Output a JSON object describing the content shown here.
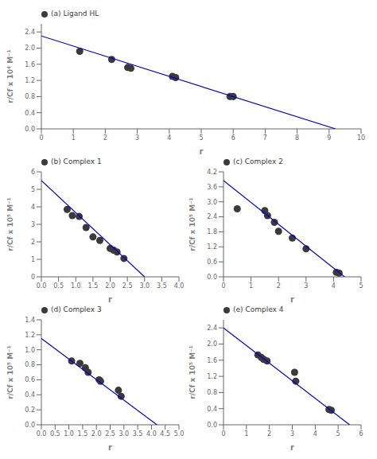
{
  "chart_data": [
    {
      "type": "scatter",
      "xlabel": "r",
      "ylabel": "r/Cf x 10⁴ M⁻¹",
      "legend": "upper left",
      "xlim": [
        0,
        10
      ],
      "ylim": [
        0.0,
        2.6
      ],
      "xticks": [
        0,
        1,
        2,
        3,
        4,
        5,
        6,
        7,
        8,
        9,
        10
      ],
      "yticks": [
        {
          "value": 0,
          "label": "0.0"
        },
        0.4,
        0.8,
        1.2,
        1.6,
        {
          "value": 2,
          "label": "2.0"
        },
        2.4
      ],
      "series": [
        {
          "name": "(a) Ligand HL",
          "type": "scatter",
          "color": "#3a3a3a",
          "x": [
            1.2,
            2.2,
            2.7,
            2.8,
            4.1,
            4.2,
            5.9,
            6.0
          ],
          "values": [
            1.92,
            1.72,
            1.52,
            1.5,
            1.3,
            1.27,
            0.8,
            0.8
          ]
        },
        {
          "type": "line",
          "color": "#0000cc",
          "x": [
            0,
            9.2
          ],
          "values": [
            2.3,
            0.0
          ]
        }
      ]
    },
    {
      "type": "scatter",
      "xlabel": "r",
      "ylabel": "r/Cf x 10⁵ M⁻¹",
      "legend": "upper left",
      "xlim": [
        0.0,
        4.0
      ],
      "ylim": [
        0.0,
        6.0
      ],
      "xticks": [
        {
          "value": 0,
          "label": "0.0"
        },
        0.5,
        {
          "value": 1,
          "label": "1.0"
        },
        1.5,
        {
          "value": 2,
          "label": "2.0"
        },
        2.5,
        {
          "value": 3,
          "label": "3.0"
        },
        3.5,
        {
          "value": 4,
          "label": "4.0"
        }
      ],
      "yticks": [
        0,
        1,
        2,
        3,
        4,
        5,
        6
      ],
      "series": [
        {
          "name": "(b) Complex 1",
          "type": "scatter",
          "color": "#3a3a3a",
          "x": [
            0.75,
            0.9,
            1.1,
            1.3,
            1.5,
            1.7,
            2.0,
            2.1,
            2.2,
            2.4
          ],
          "values": [
            3.85,
            3.5,
            3.45,
            2.82,
            2.28,
            2.08,
            1.62,
            1.52,
            1.42,
            1.05
          ]
        },
        {
          "type": "line",
          "color": "#0000cc",
          "x": [
            0.0,
            3.0
          ],
          "values": [
            5.5,
            0.0
          ]
        }
      ]
    },
    {
      "type": "scatter",
      "xlabel": "r",
      "ylabel": "r/Cf x 10⁵ M⁻¹",
      "legend": "upper left",
      "xlim": [
        0,
        5
      ],
      "ylim": [
        0.0,
        4.2
      ],
      "xticks": [
        0,
        1,
        2,
        3,
        4,
        5
      ],
      "yticks": [
        {
          "value": 0,
          "label": "0.0"
        },
        0.6,
        1.2,
        1.8,
        2.4,
        {
          "value": 3,
          "label": "3.0"
        },
        3.6,
        4.2
      ],
      "series": [
        {
          "name": "(c) Complex 2",
          "type": "scatter",
          "color": "#3a3a3a",
          "x": [
            0.5,
            1.5,
            1.6,
            1.85,
            2.0,
            2.5,
            3.0,
            4.1,
            4.2
          ],
          "values": [
            2.72,
            2.65,
            2.45,
            2.18,
            1.82,
            1.55,
            1.12,
            0.18,
            0.15
          ]
        },
        {
          "type": "line",
          "color": "#0000cc",
          "x": [
            0,
            4.4
          ],
          "values": [
            3.85,
            0.0
          ]
        }
      ]
    },
    {
      "type": "scatter",
      "xlabel": "r",
      "ylabel": "r/Cf x 10⁵ M⁻¹",
      "legend": "upper left",
      "xlim": [
        0.0,
        5.0
      ],
      "ylim": [
        0.0,
        1.4
      ],
      "xticks": [
        {
          "value": 0,
          "label": "0.0"
        },
        0.5,
        {
          "value": 1,
          "label": "1.0"
        },
        1.5,
        {
          "value": 2,
          "label": "2.0"
        },
        2.5,
        {
          "value": 3,
          "label": "3.0"
        },
        3.5,
        {
          "value": 4,
          "label": "4.0"
        },
        4.5,
        {
          "value": 5,
          "label": "5.0"
        }
      ],
      "yticks": [
        {
          "value": 0,
          "label": "0.0"
        },
        0.2,
        0.4,
        0.6,
        0.8,
        {
          "value": 1,
          "label": "1.0"
        },
        1.2,
        1.4
      ],
      "series": [
        {
          "name": "(d) Complex 3",
          "type": "scatter",
          "color": "#3a3a3a",
          "x": [
            1.1,
            1.4,
            1.6,
            1.7,
            2.1,
            2.15,
            2.8,
            2.9
          ],
          "values": [
            0.85,
            0.82,
            0.76,
            0.7,
            0.6,
            0.58,
            0.46,
            0.38
          ]
        },
        {
          "type": "line",
          "color": "#0000cc",
          "x": [
            0.0,
            4.2
          ],
          "values": [
            1.15,
            0.0
          ]
        }
      ]
    },
    {
      "type": "scatter",
      "xlabel": "r",
      "ylabel": "r/Cf x 10⁵ M⁻¹",
      "legend": "upper left",
      "xlim": [
        0,
        6
      ],
      "ylim": [
        0.0,
        2.6
      ],
      "xticks": [
        0,
        1,
        2,
        3,
        4,
        5,
        6
      ],
      "yticks": [
        {
          "value": 0,
          "label": "0.0"
        },
        0.4,
        0.8,
        1.2,
        1.6,
        {
          "value": 2,
          "label": "2.0"
        },
        2.4
      ],
      "series": [
        {
          "name": "(e) Complex 4",
          "type": "scatter",
          "color": "#3a3a3a",
          "x": [
            1.5,
            1.65,
            1.75,
            1.9,
            3.1,
            3.15,
            4.6,
            4.7
          ],
          "values": [
            1.73,
            1.67,
            1.62,
            1.58,
            1.3,
            1.08,
            0.38,
            0.36
          ]
        },
        {
          "type": "line",
          "color": "#0000cc",
          "x": [
            0,
            5.5
          ],
          "values": [
            2.4,
            0.0
          ]
        }
      ]
    }
  ]
}
